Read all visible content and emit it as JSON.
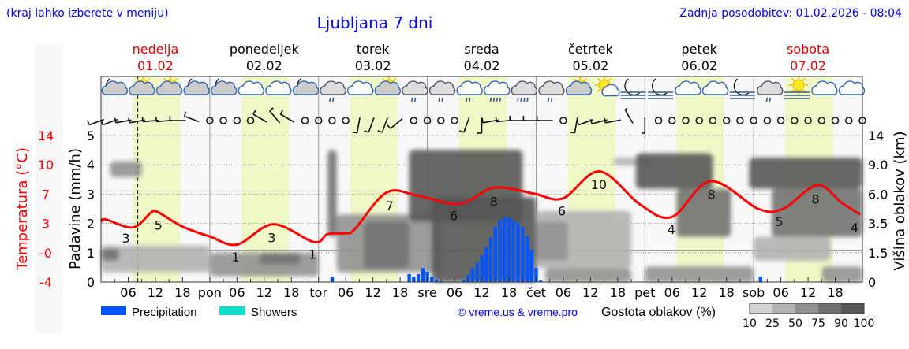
{
  "header": {
    "menu_hint": "(kraj lahko izberete v meniju)",
    "title": "Ljubljana 7 dni",
    "updated": "Zadnja posodobitev: 01.02.2026 - 08:04"
  },
  "days": [
    {
      "name": "nedelja",
      "date": "01.02",
      "weekend": true
    },
    {
      "name": "ponedeljek",
      "date": "02.02",
      "weekend": false
    },
    {
      "name": "torek",
      "date": "03.02",
      "weekend": false
    },
    {
      "name": "sreda",
      "date": "04.02",
      "weekend": false
    },
    {
      "name": "četrtek",
      "date": "05.02",
      "weekend": false
    },
    {
      "name": "petek",
      "date": "06.02",
      "weekend": false
    },
    {
      "name": "sobota",
      "date": "07.02",
      "weekend": true
    }
  ],
  "colors": {
    "text_blue": "#0000ff",
    "weekend_red": "#dd0000",
    "temperature": "#ff0000",
    "precipitation": "#0055ff",
    "showers": "#11ddcc",
    "daylight": "#f0f8c8",
    "plot_bg": "#f8f8f8",
    "cloud_scale": [
      "#d2d2d2",
      "#b2b2b2",
      "#929292",
      "#727272",
      "#575757"
    ]
  },
  "chart_data": {
    "type": "meteogram",
    "start": "01.02 00:00",
    "end": "08.02 00:00",
    "now_marker": "01.02 08:04",
    "daylight": {
      "from": "07:00",
      "to": "17:30"
    },
    "x_tick_labels": {
      "hours": [
        "06",
        "12",
        "18"
      ],
      "day_abbrev": [
        "pon",
        "tor",
        "sre",
        "čet",
        "pet",
        "sob"
      ]
    },
    "left_axis_temp": {
      "label": "Temperatura (°C)",
      "ticks": [
        "14",
        "10",
        "7",
        "3",
        "-0",
        "-4"
      ],
      "range": [
        -4,
        14
      ]
    },
    "left_axis_precip": {
      "label": "Padavine (mm/h)",
      "ticks": [
        "5",
        "4",
        "3",
        "2",
        "1",
        "0"
      ],
      "range": [
        0,
        5
      ]
    },
    "right_axis_cloud": {
      "label": "Višina oblakov (km)",
      "ticks": [
        "14",
        "9.0",
        "6.0",
        "3.5",
        "1.5",
        "0"
      ]
    },
    "grid": true,
    "temperature": [
      [
        "01.02 00:00",
        3.4
      ],
      [
        "01.02 01:00",
        3.7
      ],
      [
        "01.02 07:00",
        2.7
      ],
      [
        "01.02 11:00",
        4.5
      ],
      [
        "01.02 12:30",
        4.6
      ],
      [
        "01.02 18:00",
        2.8
      ],
      [
        "02.02 00:00",
        1.6
      ],
      [
        "02.02 06:00",
        0.6
      ],
      [
        "02.02 14:00",
        3.1
      ],
      [
        "02.02 23:00",
        0.9
      ],
      [
        "03.02 02:00",
        1.9
      ],
      [
        "03.02 06:00",
        2.0
      ],
      [
        "03.02 08:00",
        2.5
      ],
      [
        "03.02 15:00",
        7.0
      ],
      [
        "03.02 22:00",
        6.6
      ],
      [
        "04.02 07:00",
        5.6
      ],
      [
        "04.02 14:00",
        7.5
      ],
      [
        "04.02 19:00",
        7.4
      ],
      [
        "05.02 00:00",
        6.8
      ],
      [
        "05.02 06:00",
        6.3
      ],
      [
        "05.02 14:00",
        9.6
      ],
      [
        "05.02 23:00",
        5.5
      ],
      [
        "06.02 06:00",
        4.0
      ],
      [
        "06.02 14:30",
        8.4
      ],
      [
        "07.02 01:00",
        5.0
      ],
      [
        "07.02 06:30",
        5.0
      ],
      [
        "07.02 14:00",
        7.9
      ],
      [
        "07.02 19:30",
        5.7
      ],
      [
        "07.02 23:30",
        4.3
      ]
    ],
    "temp_labels": [
      [
        "01.02 05:30",
        "3"
      ],
      [
        "01.02 12:40",
        "5"
      ],
      [
        "02.02 05:40",
        "1"
      ],
      [
        "02.02 13:40",
        "3"
      ],
      [
        "02.02 22:40",
        "1"
      ],
      [
        "03.02 15:40",
        "7"
      ],
      [
        "04.02 05:50",
        "6"
      ],
      [
        "04.02 14:40",
        "8"
      ],
      [
        "05.02 05:40",
        "6"
      ],
      [
        "05.02 13:50",
        "10"
      ],
      [
        "06.02 05:50",
        "4"
      ],
      [
        "06.02 14:40",
        "8"
      ],
      [
        "07.02 05:40",
        "5"
      ],
      [
        "07.02 13:40",
        "8"
      ],
      [
        "07.02 23:30",
        "4"
      ]
    ],
    "precipitation": [
      [
        "03.02 03:00",
        0.18
      ],
      [
        "03.02 20:00",
        0.27
      ],
      [
        "03.02 21:00",
        0.19
      ],
      [
        "03.02 22:00",
        0.27
      ],
      [
        "03.02 23:00",
        0.48
      ],
      [
        "04.02 00:00",
        0.35
      ],
      [
        "04.02 01:00",
        0.19
      ],
      [
        "04.02 02:00",
        0.08
      ],
      [
        "04.02 03:00",
        0.03
      ],
      [
        "04.02 08:00",
        0.08
      ],
      [
        "04.02 09:00",
        0.24
      ],
      [
        "04.02 10:00",
        0.46
      ],
      [
        "04.02 11:00",
        0.67
      ],
      [
        "04.02 12:00",
        0.91
      ],
      [
        "04.02 13:00",
        1.18
      ],
      [
        "04.02 14:00",
        1.51
      ],
      [
        "04.02 15:00",
        1.88
      ],
      [
        "04.02 16:00",
        2.12
      ],
      [
        "04.02 17:00",
        2.2
      ],
      [
        "04.02 18:00",
        2.2
      ],
      [
        "04.02 19:00",
        2.12
      ],
      [
        "04.02 20:00",
        2.02
      ],
      [
        "04.02 21:00",
        1.88
      ],
      [
        "04.02 22:00",
        1.56
      ],
      [
        "04.02 23:00",
        1.1
      ],
      [
        "05.02 00:00",
        0.48
      ],
      [
        "05.02 01:00",
        0.05
      ],
      [
        "07.02 01:30",
        0.19
      ]
    ],
    "cloud_cover": [
      {
        "from": "01.02 02:00",
        "to": "01.02 09:00",
        "base_km": 7.8,
        "top_km": 9.7,
        "density": 50
      },
      {
        "from": "01.02 00:00",
        "to": "02.02 00:00",
        "base_km": 0.5,
        "top_km": 2.0,
        "density": 25
      },
      {
        "from": "01.02 00:00",
        "to": "01.02 04:00",
        "base_km": 1.1,
        "top_km": 1.8,
        "density": 75
      },
      {
        "from": "02.02 00:00",
        "to": "03.02 00:00",
        "base_km": 0.3,
        "top_km": 1.5,
        "density": 50
      },
      {
        "from": "02.02 11:00",
        "to": "02.02 20:00",
        "base_km": 0.9,
        "top_km": 1.5,
        "density": 75
      },
      {
        "from": "03.02 02:00",
        "to": "03.02 04:00",
        "base_km": 2.6,
        "top_km": 11.6,
        "density": 75
      },
      {
        "from": "03.02 04:00",
        "to": "04.02 03:00",
        "base_km": 0.5,
        "top_km": 4.3,
        "density": 50
      },
      {
        "from": "03.02 10:00",
        "to": "03.02 20:00",
        "base_km": 0.7,
        "top_km": 3.7,
        "density": 75
      },
      {
        "from": "03.02 20:00",
        "to": "04.02 21:00",
        "base_km": 3.7,
        "top_km": 11.6,
        "density": 90
      },
      {
        "from": "04.02 01:00",
        "to": "05.02 00:00",
        "base_km": 0.0,
        "top_km": 5.8,
        "density": 90
      },
      {
        "from": "05.02 00:00",
        "to": "05.02 21:00",
        "base_km": 0.7,
        "top_km": 4.6,
        "density": 25
      },
      {
        "from": "05.02 00:00",
        "to": "05.02 07:00",
        "base_km": 1.1,
        "top_km": 3.7,
        "density": 50
      },
      {
        "from": "05.02 02:00",
        "to": "05.02 21:00",
        "base_km": 0.0,
        "top_km": 0.7,
        "density": 50
      },
      {
        "from": "05.02 17:00",
        "to": "06.02 02:00",
        "base_km": 9.0,
        "top_km": 10.3,
        "density": 25
      },
      {
        "from": "05.02 22:00",
        "to": "06.02 15:00",
        "base_km": 6.6,
        "top_km": 11.0,
        "density": 90
      },
      {
        "from": "06.02 07:00",
        "to": "06.02 19:00",
        "base_km": 2.6,
        "top_km": 6.6,
        "density": 75
      },
      {
        "from": "06.02 00:00",
        "to": "07.02 00:00",
        "base_km": 0.0,
        "top_km": 0.8,
        "density": 50
      },
      {
        "from": "06.02 23:00",
        "to": "08.02 00:00",
        "base_km": 6.6,
        "top_km": 10.3,
        "density": 90
      },
      {
        "from": "07.02 04:00",
        "to": "08.02 00:00",
        "base_km": 2.6,
        "top_km": 6.6,
        "density": 75
      },
      {
        "from": "07.02 00:00",
        "to": "07.02 17:00",
        "base_km": 1.1,
        "top_km": 2.6,
        "density": 25
      },
      {
        "from": "07.02 15:00",
        "to": "08.02 00:00",
        "base_km": 0.0,
        "top_km": 0.8,
        "density": 50
      }
    ],
    "weather_icons": [
      "night-cloudy",
      "partly-cloudy",
      "partly-cloudy",
      "night-cloudy",
      "night-cloudy",
      "cloudy",
      "cloudy",
      "night-cloudy",
      "overcast-light-rain",
      "cloudy",
      "partly-cloudy",
      "overcast-light-rain",
      "overcast-light-rain",
      "cloudy-light-rain",
      "cloudy-moderate-rain",
      "overcast-moderate-rain",
      "overcast-light-rain",
      "partly-cloudy",
      "mostly-clear",
      "night-fog",
      "night-fog",
      "cloudy",
      "cloudy",
      "night-fog",
      "overcast-light-rain",
      "sun-fog",
      "cloudy",
      "cloudy"
    ],
    "wind": [
      {
        "dir": 250,
        "kt": 10
      },
      {
        "dir": 250,
        "kt": 10
      },
      {
        "dir": 260,
        "kt": 10
      },
      {
        "dir": 260,
        "kt": 10
      },
      {
        "dir": 265,
        "kt": 10
      },
      {
        "dir": 265,
        "kt": 10
      },
      {
        "dir": 270,
        "kt": 10
      },
      {
        "dir": 290,
        "kt": 10
      },
      "calm",
      "calm",
      "calm",
      "calm",
      {
        "dir": 300,
        "kt": 10
      },
      {
        "dir": 320,
        "kt": 10
      },
      {
        "dir": 300,
        "kt": 10
      },
      "calm",
      "calm",
      "calm",
      "calm",
      {
        "dir": 190,
        "kt": 10
      },
      {
        "dir": 200,
        "kt": 10
      },
      {
        "dir": 200,
        "kt": 10
      },
      {
        "dir": 230,
        "kt": 10
      },
      "calm",
      "calm",
      "calm",
      "calm",
      {
        "dir": 200,
        "kt": 10
      },
      {
        "dir": 180,
        "kt": 10
      },
      {
        "dir": 260,
        "kt": 10
      },
      {
        "dir": 265,
        "kt": 10
      },
      {
        "dir": 270,
        "kt": 10
      },
      {
        "dir": 270,
        "kt": 10
      },
      {
        "dir": 270,
        "kt": 10
      },
      "calm",
      {
        "dir": 190,
        "kt": 10
      },
      {
        "dir": 250,
        "kt": 10
      },
      {
        "dir": 255,
        "kt": 10
      },
      {
        "dir": 260,
        "kt": 10
      },
      {
        "dir": 330,
        "kt": 5
      },
      {
        "dir": 180,
        "kt": 5
      },
      "calm",
      "calm",
      "calm",
      "calm",
      "calm",
      "calm",
      "calm",
      "calm",
      "calm",
      "calm",
      "calm",
      "calm",
      "calm",
      "calm",
      "calm",
      "calm"
    ]
  },
  "legend": {
    "precipitation": "Precipitation",
    "showers": "Showers",
    "copyright": "© vreme.us & vreme.pro",
    "cloud_density": "Gostota oblakov (%)",
    "cloud_scale_labels": [
      "10",
      "25",
      "50",
      "75",
      "90",
      "100"
    ]
  }
}
